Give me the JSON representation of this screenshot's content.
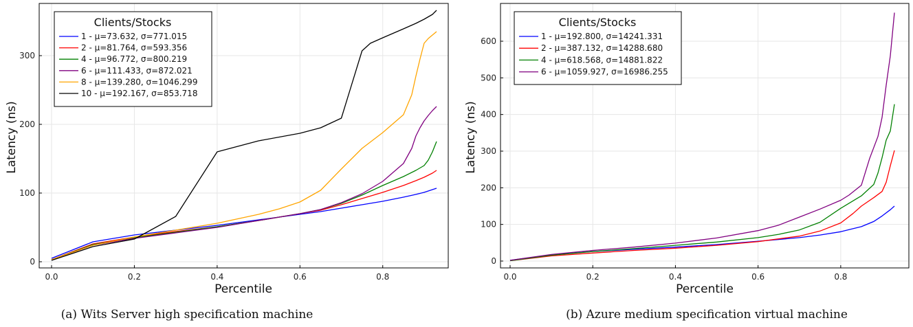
{
  "chart_data": [
    {
      "type": "line",
      "caption": "(a) Wits Server high specification machine",
      "xlabel": "Percentile",
      "ylabel": "Latency (ns)",
      "xlim": [
        0.0,
        0.93
      ],
      "ylim": [
        0,
        370
      ],
      "xticks": [
        0.0,
        0.2,
        0.4,
        0.6,
        0.8
      ],
      "xtick_labels": [
        "0.0",
        "0.2",
        "0.4",
        "0.6",
        "0.8"
      ],
      "yticks": [
        0,
        100,
        200,
        300
      ],
      "ytick_labels": [
        "0",
        "100",
        "200",
        "300"
      ],
      "grid": true,
      "legend_title": "Clients/Stocks",
      "legend_position": "top-left",
      "series": [
        {
          "name": "1 - μ=73.632, σ=771.015",
          "color": "#0000ff",
          "x": [
            0,
            0.1,
            0.2,
            0.3,
            0.4,
            0.5,
            0.6,
            0.65,
            0.7,
            0.75,
            0.8,
            0.85,
            0.88,
            0.9,
            0.91,
            0.92,
            0.93
          ],
          "y": [
            5,
            29,
            39,
            46,
            53,
            61,
            69,
            73,
            78,
            83,
            88,
            94,
            98,
            101,
            103,
            105,
            107
          ]
        },
        {
          "name": "2 - μ=81.764, σ=593.356",
          "color": "#ff0000",
          "x": [
            0,
            0.1,
            0.2,
            0.3,
            0.4,
            0.5,
            0.6,
            0.65,
            0.7,
            0.75,
            0.8,
            0.85,
            0.88,
            0.9,
            0.91,
            0.92,
            0.93
          ],
          "y": [
            3,
            26,
            36,
            44,
            51,
            60,
            70,
            75,
            83,
            92,
            101,
            111,
            118,
            123,
            126,
            129,
            133
          ]
        },
        {
          "name": "4 - μ=96.772, σ=800.219",
          "color": "#008000",
          "x": [
            0,
            0.1,
            0.2,
            0.3,
            0.4,
            0.5,
            0.6,
            0.65,
            0.7,
            0.75,
            0.8,
            0.85,
            0.88,
            0.9,
            0.91,
            0.92,
            0.93
          ],
          "y": [
            3,
            25,
            35,
            43,
            51,
            60,
            70,
            76,
            85,
            97,
            111,
            124,
            133,
            140,
            148,
            160,
            175
          ]
        },
        {
          "name": "6 - μ=111.433, σ=872.021",
          "color": "#800080",
          "x": [
            0,
            0.1,
            0.2,
            0.3,
            0.4,
            0.5,
            0.6,
            0.65,
            0.7,
            0.75,
            0.8,
            0.85,
            0.87,
            0.88,
            0.89,
            0.9,
            0.91,
            0.92,
            0.93
          ],
          "y": [
            3,
            24,
            34,
            42,
            50,
            60,
            70,
            76,
            86,
            99,
            117,
            143,
            165,
            183,
            195,
            205,
            213,
            220,
            226
          ]
        },
        {
          "name": "8 - μ=139.280, σ=1046.299",
          "color": "#ffa500",
          "x": [
            0,
            0.1,
            0.2,
            0.3,
            0.4,
            0.5,
            0.55,
            0.6,
            0.65,
            0.7,
            0.75,
            0.8,
            0.85,
            0.87,
            0.88,
            0.89,
            0.9,
            0.91,
            0.92,
            0.93
          ],
          "y": [
            3,
            24,
            36,
            46,
            56,
            69,
            77,
            87,
            104,
            135,
            165,
            188,
            214,
            243,
            270,
            295,
            318,
            325,
            330,
            335
          ]
        },
        {
          "name": "10 - μ=192.167, σ=853.718",
          "color": "#000000",
          "x": [
            0,
            0.1,
            0.2,
            0.3,
            0.4,
            0.5,
            0.6,
            0.65,
            0.7,
            0.75,
            0.77,
            0.8,
            0.85,
            0.88,
            0.9,
            0.92,
            0.93
          ],
          "y": [
            2,
            22,
            33,
            66,
            160,
            176,
            187,
            195,
            209,
            307,
            318,
            326,
            339,
            347,
            353,
            360,
            366
          ]
        }
      ]
    },
    {
      "type": "line",
      "caption": "(b) Azure medium specification virtual machine",
      "xlabel": "Percentile",
      "ylabel": "Latency (ns)",
      "xlim": [
        0.0,
        0.93
      ],
      "ylim": [
        0,
        690
      ],
      "xticks": [
        0.0,
        0.2,
        0.4,
        0.6,
        0.8
      ],
      "xtick_labels": [
        "0.0",
        "0.2",
        "0.4",
        "0.6",
        "0.8"
      ],
      "yticks": [
        0,
        100,
        200,
        300,
        400,
        500,
        600
      ],
      "ytick_labels": [
        "0",
        "100",
        "200",
        "300",
        "400",
        "500",
        "600"
      ],
      "grid": true,
      "legend_title": "Clients/Stocks",
      "legend_position": "top-left",
      "series": [
        {
          "name": "1 - μ=192.800, σ=14241.331",
          "color": "#0000ff",
          "x": [
            0,
            0.1,
            0.2,
            0.3,
            0.4,
            0.5,
            0.6,
            0.7,
            0.75,
            0.8,
            0.85,
            0.88,
            0.9,
            0.92,
            0.93
          ],
          "y": [
            2,
            17,
            26,
            32,
            38,
            45,
            54,
            64,
            71,
            80,
            94,
            108,
            123,
            140,
            150
          ]
        },
        {
          "name": "2 - μ=387.132, σ=14288.680",
          "color": "#ff0000",
          "x": [
            0,
            0.1,
            0.2,
            0.3,
            0.4,
            0.5,
            0.6,
            0.7,
            0.75,
            0.8,
            0.83,
            0.85,
            0.88,
            0.9,
            0.91,
            0.92,
            0.93
          ],
          "y": [
            1,
            14,
            22,
            29,
            35,
            43,
            53,
            68,
            82,
            104,
            130,
            150,
            173,
            190,
            215,
            260,
            302
          ]
        },
        {
          "name": "4 - μ=618.568, σ=14881.822",
          "color": "#008000",
          "x": [
            0,
            0.1,
            0.2,
            0.3,
            0.4,
            0.5,
            0.6,
            0.65,
            0.7,
            0.75,
            0.8,
            0.85,
            0.88,
            0.89,
            0.9,
            0.91,
            0.92,
            0.93
          ],
          "y": [
            1,
            16,
            26,
            34,
            43,
            52,
            64,
            73,
            85,
            106,
            144,
            178,
            209,
            240,
            282,
            330,
            355,
            428
          ]
        },
        {
          "name": "6 - μ=1059.927, σ=16986.255",
          "color": "#800080",
          "x": [
            0,
            0.1,
            0.2,
            0.3,
            0.4,
            0.5,
            0.6,
            0.65,
            0.7,
            0.75,
            0.8,
            0.82,
            0.85,
            0.87,
            0.89,
            0.9,
            0.91,
            0.92,
            0.93
          ],
          "y": [
            2,
            18,
            29,
            38,
            49,
            63,
            83,
            98,
            120,
            142,
            166,
            180,
            207,
            280,
            340,
            392,
            480,
            560,
            678
          ]
        }
      ]
    }
  ]
}
